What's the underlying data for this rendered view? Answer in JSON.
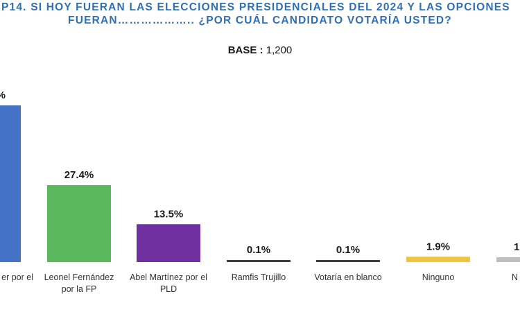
{
  "title_line1": "P14.  SI HOY FUERAN LAS ELECCIONES PRESIDENCIALES DEL 2024 Y LAS OPCIONES",
  "title_line2": "FUERAN………………..  ¿POR CUÁL CANDIDATO VOTARÍA USTED?",
  "base_label": "BASE : ",
  "base_value": "1,200",
  "chart_data": {
    "type": "bar",
    "title": "P14.  SI HOY FUERAN LAS ELECCIONES PRESIDENCIALES DEL 2024 Y LAS OPCIONES FUERAN………………..  ¿POR CUÁL CANDIDATO VOTARÍA USTED?",
    "xlabel": "",
    "ylabel": "",
    "categories": [
      "er por el",
      "Leonel Fernández por la FP",
      "Abel Martínez por el PLD",
      "Ramfis Trujillo",
      "Votaría en blanco",
      "Ninguno",
      "N"
    ],
    "category_lines": [
      [
        "er por el"
      ],
      [
        "Leonel Fernández",
        "por la FP"
      ],
      [
        "Abel Martínez por el",
        "PLD"
      ],
      [
        "Ramfis Trujillo"
      ],
      [
        "Votaría en blanco"
      ],
      [
        "Ninguno"
      ],
      [
        "N"
      ]
    ],
    "values": [
      null,
      27.4,
      13.5,
      0.1,
      0.1,
      1.9,
      null
    ],
    "value_labels": [
      "%",
      "27.4%",
      "13.5%",
      "0.1%",
      "0.1%",
      "1.9%",
      "1"
    ],
    "colors": [
      "#4472c4",
      "#5cb85c",
      "#7030a0",
      "#404040",
      "#404040",
      "#f0c43c",
      "#bfbfbf"
    ],
    "grid": false,
    "legend": "none"
  }
}
